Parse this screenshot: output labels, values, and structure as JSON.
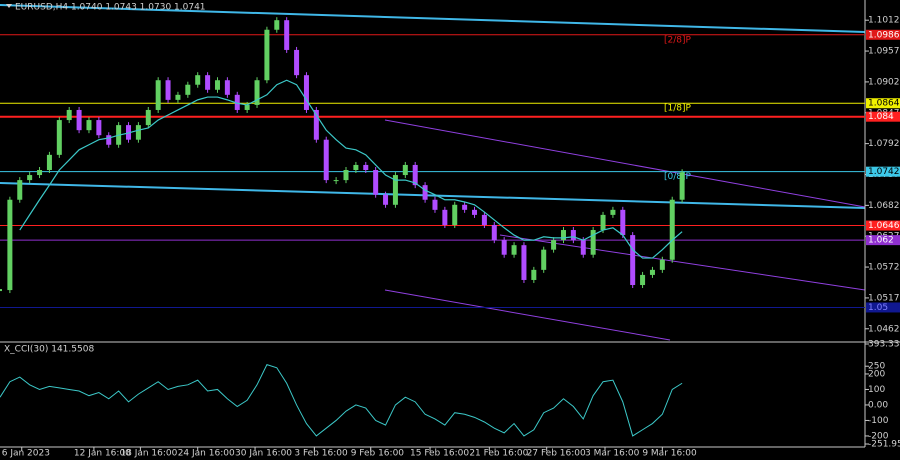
{
  "chart_data": [
    {
      "type": "candlestick",
      "title": "EURUSD,H4 1.0740 1.0743 1.0730 1.0741",
      "up_color": "#62d062",
      "down_color": "#b04cff",
      "closes": [
        1.0531,
        1.0692,
        1.0727,
        1.0736,
        1.0745,
        1.0772,
        1.0834,
        1.0852,
        1.0816,
        1.0834,
        1.0807,
        1.079,
        1.0825,
        1.0799,
        1.0825,
        1.0852,
        1.0905,
        1.087,
        1.0879,
        1.0897,
        1.0914,
        1.0888,
        1.0905,
        1.0879,
        1.0852,
        1.0861,
        1.0905,
        1.0995,
        1.1012,
        1.0959,
        1.0914,
        1.0852,
        1.0799,
        1.0727,
        1.0727,
        1.0745,
        1.0754,
        1.0745,
        1.0701,
        1.0683,
        1.0736,
        1.0754,
        1.0718,
        1.0692,
        1.0674,
        1.0647,
        1.0683,
        1.0674,
        1.0665,
        1.0647,
        1.062,
        1.0594,
        1.0611,
        1.0549,
        1.0567,
        1.0603,
        1.062,
        1.0638,
        1.062,
        1.0594,
        1.0638,
        1.0665,
        1.0674,
        1.0629,
        1.054,
        1.0558,
        1.0567,
        1.0585,
        1.0692,
        1.0741
      ],
      "ma": {
        "color": "#3cc8c8",
        "values": [
          null,
          null,
          1.0638,
          1.0665,
          1.0692,
          1.0718,
          1.0745,
          1.0763,
          1.0781,
          1.079,
          1.0799,
          1.0802,
          1.0807,
          1.0811,
          1.0816,
          1.082,
          1.0834,
          1.0843,
          1.0852,
          1.0861,
          1.087,
          1.0875,
          1.0875,
          1.087,
          1.0864,
          1.0861,
          1.087,
          1.0879,
          1.0897,
          1.0905,
          1.0897,
          1.087,
          1.0843,
          1.0816,
          1.0799,
          1.0784,
          1.0781,
          1.0772,
          1.0754,
          1.0736,
          1.0727,
          1.0727,
          1.0722,
          1.0709,
          1.0701,
          1.0692,
          1.0692,
          1.0688,
          1.0683,
          1.067,
          1.0656,
          1.0642,
          1.0629,
          1.062,
          1.062,
          1.0626,
          1.0624,
          1.0624,
          1.0626,
          1.062,
          1.0629,
          1.0638,
          1.0642,
          1.0629,
          1.0603,
          1.0588,
          1.0588,
          1.0603,
          1.062,
          1.0635
        ]
      },
      "xlim": [
        0,
        87.5
      ],
      "ylim": [
        1.0442,
        1.1048
      ],
      "yticks": [
        1.1012,
        1.0957,
        1.0902,
        1.0847,
        1.0792,
        1.0737,
        1.0682,
        1.0627,
        1.0572,
        1.0517,
        1.0462
      ],
      "xticks": [
        {
          "value": 2.2,
          "label": "6 Jan 2023"
        },
        {
          "value": 9.5,
          "label": "12 Jan 16:00"
        },
        {
          "value": 14.2,
          "label": "18 Jan 16:00"
        },
        {
          "value": 20,
          "label": "24 Jan 16:00"
        },
        {
          "value": 25.8,
          "label": "30 Jan 16:00"
        },
        {
          "value": 31.8,
          "label": "3 Feb 16:00"
        },
        {
          "value": 37.5,
          "label": "9 Feb 16:00"
        },
        {
          "value": 43.5,
          "label": "15 Feb 16:00"
        },
        {
          "value": 49.5,
          "label": "21 Feb 16:00"
        },
        {
          "value": 55.3,
          "label": "27 Feb 16:00"
        },
        {
          "value": 61.2,
          "label": "3 Mar 16:00"
        },
        {
          "value": 67,
          "label": "9 Mar 16:00"
        }
      ],
      "levels": [
        {
          "value": 1.0986,
          "color": "#e01818",
          "text_color": "#ffffff",
          "tag": "[2/8]P"
        },
        {
          "value": 1.0864,
          "color": "#f0f000",
          "text_color": "#000000",
          "tag": "[1/8]P"
        },
        {
          "value": 1.084,
          "color": "#ff2020",
          "text_color": "#ffffff"
        },
        {
          "value": 1.0742,
          "color": "#3cc8e8",
          "text_color": "#000000",
          "tag": "[0/8]P"
        },
        {
          "value": 1.0646,
          "color": "#ff2020",
          "text_color": "#ffffff"
        },
        {
          "value": 1.062,
          "color": "#9030d0",
          "text_color": "#ffffff"
        },
        {
          "value": 1.05,
          "color": "#101890",
          "text_color": "#8080ff"
        }
      ]
    },
    {
      "type": "line",
      "title": "X_CCI(30) 141.5508",
      "color": "#3cc8c8",
      "values": [
        50,
        150,
        180,
        130,
        100,
        120,
        110,
        100,
        90,
        60,
        80,
        40,
        90,
        20,
        70,
        110,
        150,
        100,
        120,
        130,
        160,
        90,
        100,
        40,
        -10,
        30,
        130,
        260,
        240,
        140,
        0,
        -120,
        -200,
        -150,
        -100,
        -40,
        0,
        -20,
        -100,
        -130,
        0,
        50,
        20,
        -60,
        -90,
        -130,
        -50,
        -60,
        -80,
        -110,
        -150,
        -180,
        -120,
        -200,
        -160,
        -50,
        -20,
        40,
        -10,
        -90,
        60,
        150,
        160,
        20,
        -200,
        -160,
        -120,
        -60,
        100,
        140
      ],
      "xlim": [
        0,
        87.5
      ],
      "ylim": [
        -251.9558,
        393.3341
      ],
      "yticks": [
        393.3341,
        250,
        200,
        100,
        {
          "value": 0,
          "label": "0.00"
        },
        -100,
        -200,
        -251.9558
      ]
    }
  ]
}
